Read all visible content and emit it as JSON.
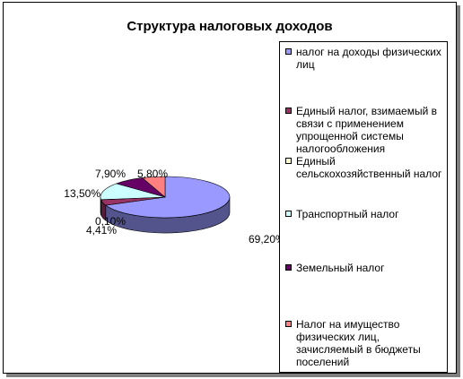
{
  "chart_data": {
    "type": "pie",
    "title": "Структура налоговых доходов",
    "categories": [
      "налог на доходы физических лиц",
      "Единый налог, взимаемый в связи с применением упрощенной системы налогообложения",
      "Единый сельскохозяйственный налог",
      "Транспортный налог",
      "Земельный налог",
      "Налог на имущество физических лиц, зачисляемый в бюджеты поселений"
    ],
    "values": [
      69.2,
      4.41,
      0.1,
      13.5,
      7.9,
      5.8
    ],
    "data_labels": [
      "69,20%",
      "4,41%",
      "0,10%",
      "13,50%",
      "7,90%",
      "5,80%"
    ],
    "colors": [
      "#9999ff",
      "#993366",
      "#ffffcc",
      "#ccffff",
      "#660066",
      "#ff8080"
    ],
    "legend_position": "right",
    "style": "3d"
  }
}
